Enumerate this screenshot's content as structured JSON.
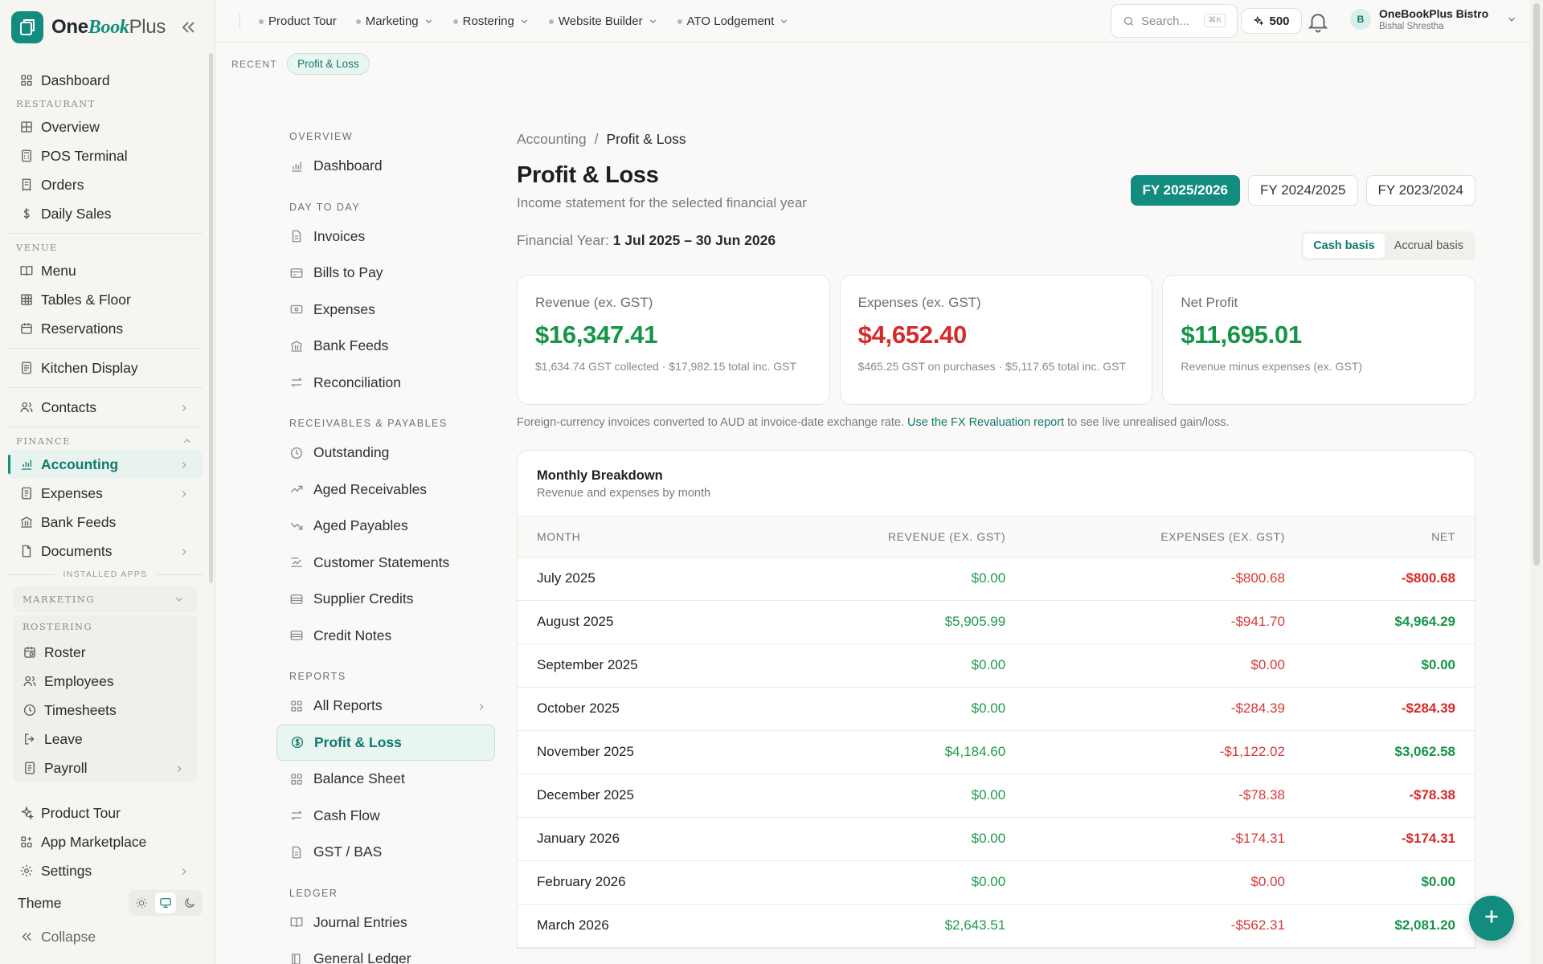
{
  "brand": {
    "name_one": "One",
    "name_book": "Book",
    "name_plus": "Plus"
  },
  "sidebar": {
    "dashboard": "Dashboard",
    "restaurant_label": "RESTAURANT",
    "restaurant": [
      "Overview",
      "POS Terminal",
      "Orders",
      "Daily Sales"
    ],
    "venue_label": "VENUE",
    "venue": [
      "Menu",
      "Tables & Floor",
      "Reservations"
    ],
    "kitchen": "Kitchen Display",
    "contacts": "Contacts",
    "finance_label": "FINANCE",
    "finance": [
      "Accounting",
      "Expenses",
      "Bank Feeds",
      "Documents"
    ],
    "installed_apps_label": "INSTALLED APPS",
    "marketing_label": "MARKETING",
    "rostering_label": "ROSTERING",
    "rostering": [
      "Roster",
      "Employees",
      "Timesheets",
      "Leave",
      "Payroll"
    ],
    "bottom": [
      "Product Tour",
      "App Marketplace",
      "Settings"
    ],
    "theme_label": "Theme",
    "collapse_label": "Collapse"
  },
  "topbar": {
    "menu": [
      "Product Tour",
      "Marketing",
      "Rostering",
      "Website Builder",
      "ATO Lodgement"
    ],
    "search_placeholder": "Search...",
    "search_kbd": "⌘K",
    "credits": "500",
    "account_name": "OneBookPlus Bistro",
    "account_user": "Bishal Shrestha",
    "avatar_initial": "B"
  },
  "recent": {
    "label": "RECENT",
    "chip": "Profit & Loss"
  },
  "subnav": {
    "overview_label": "OVERVIEW",
    "overview": [
      "Dashboard"
    ],
    "daytoday_label": "DAY TO DAY",
    "daytoday": [
      "Invoices",
      "Bills to Pay",
      "Expenses",
      "Bank Feeds",
      "Reconciliation"
    ],
    "receivables_label": "RECEIVABLES & PAYABLES",
    "receivables": [
      "Outstanding",
      "Aged Receivables",
      "Aged Payables",
      "Customer Statements",
      "Supplier Credits",
      "Credit Notes"
    ],
    "reports_label": "REPORTS",
    "reports": [
      "All Reports",
      "Profit & Loss",
      "Balance Sheet",
      "Cash Flow",
      "GST / BAS"
    ],
    "ledger_label": "LEDGER",
    "ledger": [
      "Journal Entries",
      "General Ledger"
    ]
  },
  "page": {
    "breadcrumb_parent": "Accounting",
    "breadcrumb_sep": "/",
    "breadcrumb_current": "Profit & Loss",
    "title": "Profit & Loss",
    "subtitle": "Income statement for the selected financial year",
    "fy_tabs": [
      "FY 2025/2026",
      "FY 2024/2025",
      "FY 2023/2024"
    ],
    "fy_label": "Financial Year:",
    "fy_range": "1 Jul 2025 – 30 Jun 2026",
    "basis": [
      "Cash basis",
      "Accrual basis"
    ],
    "cards": [
      {
        "label": "Revenue (ex. GST)",
        "value": "$16,347.41",
        "note": "$1,634.74 GST collected · $17,982.15 total inc. GST"
      },
      {
        "label": "Expenses (ex. GST)",
        "value": "$4,652.40",
        "note": "$465.25 GST on purchases · $5,117.65 total inc. GST"
      },
      {
        "label": "Net Profit",
        "value": "$11,695.01",
        "note": "Revenue minus expenses (ex. GST)"
      }
    ],
    "fx_note_pre": "Foreign-currency invoices converted to AUD at invoice-date exchange rate.",
    "fx_note_link": "Use the FX Revaluation report",
    "fx_note_post": "to see live unrealised gain/loss."
  },
  "breakdown": {
    "title": "Monthly Breakdown",
    "subtitle": "Revenue and expenses by month",
    "columns": [
      "MONTH",
      "REVENUE (EX. GST)",
      "EXPENSES (EX. GST)",
      "NET"
    ],
    "rows": [
      {
        "month": "July 2025",
        "revenue": "$0.00",
        "expenses": "-$800.68",
        "net": "-$800.68"
      },
      {
        "month": "August 2025",
        "revenue": "$5,905.99",
        "expenses": "-$941.70",
        "net": "$4,964.29"
      },
      {
        "month": "September 2025",
        "revenue": "$0.00",
        "expenses": "$0.00",
        "net": "$0.00"
      },
      {
        "month": "October 2025",
        "revenue": "$0.00",
        "expenses": "-$284.39",
        "net": "-$284.39"
      },
      {
        "month": "November 2025",
        "revenue": "$4,184.60",
        "expenses": "-$1,122.02",
        "net": "$3,062.58"
      },
      {
        "month": "December 2025",
        "revenue": "$0.00",
        "expenses": "-$78.38",
        "net": "-$78.38"
      },
      {
        "month": "January 2026",
        "revenue": "$0.00",
        "expenses": "-$174.31",
        "net": "-$174.31"
      },
      {
        "month": "February 2026",
        "revenue": "$0.00",
        "expenses": "$0.00",
        "net": "$0.00"
      },
      {
        "month": "March 2026",
        "revenue": "$2,643.51",
        "expenses": "-$562.31",
        "net": "$2,081.20"
      }
    ]
  },
  "colors": {
    "accent": "#128c7e",
    "positive": "#169447",
    "negative": "#d42a2a"
  }
}
